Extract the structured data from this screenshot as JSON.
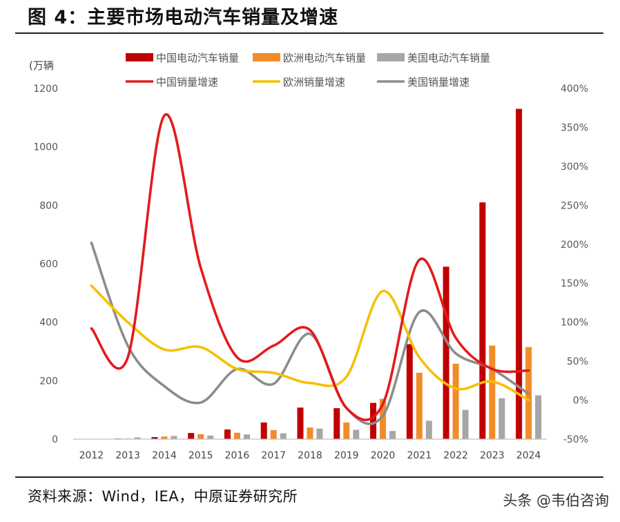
{
  "title": "图 4：主要市场电动汽车销量及增速",
  "source": "资料来源：Wind，IEA，中原证券研究所",
  "watermark": "头条 @韦伯咨询",
  "chart_data": {
    "type": "bar",
    "y_unit": "(万辆",
    "categories": [
      "2012",
      "2013",
      "2014",
      "2015",
      "2016",
      "2017",
      "2018",
      "2019",
      "2020",
      "2021",
      "2022",
      "2023",
      "2024"
    ],
    "ylim": [
      0,
      1200
    ],
    "y_ticks": [
      "0",
      "200",
      "400",
      "600",
      "800",
      "1000",
      "1200"
    ],
    "y2lim": [
      -50,
      400
    ],
    "y2_ticks": [
      "-50%",
      "0%",
      "50%",
      "100%",
      "150%",
      "200%",
      "250%",
      "300%",
      "350%",
      "400%"
    ],
    "bar_series": [
      {
        "name": "中国电动汽车销量",
        "color": "#C00000",
        "values": [
          1,
          2,
          7,
          21,
          33,
          57,
          108,
          106,
          124,
          325,
          590,
          810,
          1130
        ]
      },
      {
        "name": "欧洲电动汽车销量",
        "color": "#F28C28",
        "values": [
          1,
          2,
          9,
          17,
          22,
          31,
          40,
          57,
          138,
          227,
          258,
          320,
          315
        ]
      },
      {
        "name": "美国电动汽车销量",
        "color": "#A6A6A6",
        "values": [
          1,
          6,
          11,
          12,
          16,
          20,
          36,
          32,
          28,
          63,
          100,
          140,
          150
        ]
      }
    ],
    "line_series": [
      {
        "name": "中国销量增速",
        "color": "#E31A1C",
        "values": [
          92,
          55,
          365,
          170,
          55,
          70,
          90,
          -10,
          -5,
          180,
          80,
          40,
          38
        ]
      },
      {
        "name": "欧洲销量增速",
        "color": "#F5C000",
        "values": [
          147,
          100,
          65,
          68,
          40,
          35,
          22,
          30,
          140,
          55,
          15,
          24,
          0
        ]
      },
      {
        "name": "美国销量增速",
        "color": "#8C8C8C",
        "values": [
          202,
          70,
          18,
          -3,
          40,
          21,
          85,
          -10,
          -20,
          113,
          60,
          40,
          8
        ]
      }
    ]
  }
}
